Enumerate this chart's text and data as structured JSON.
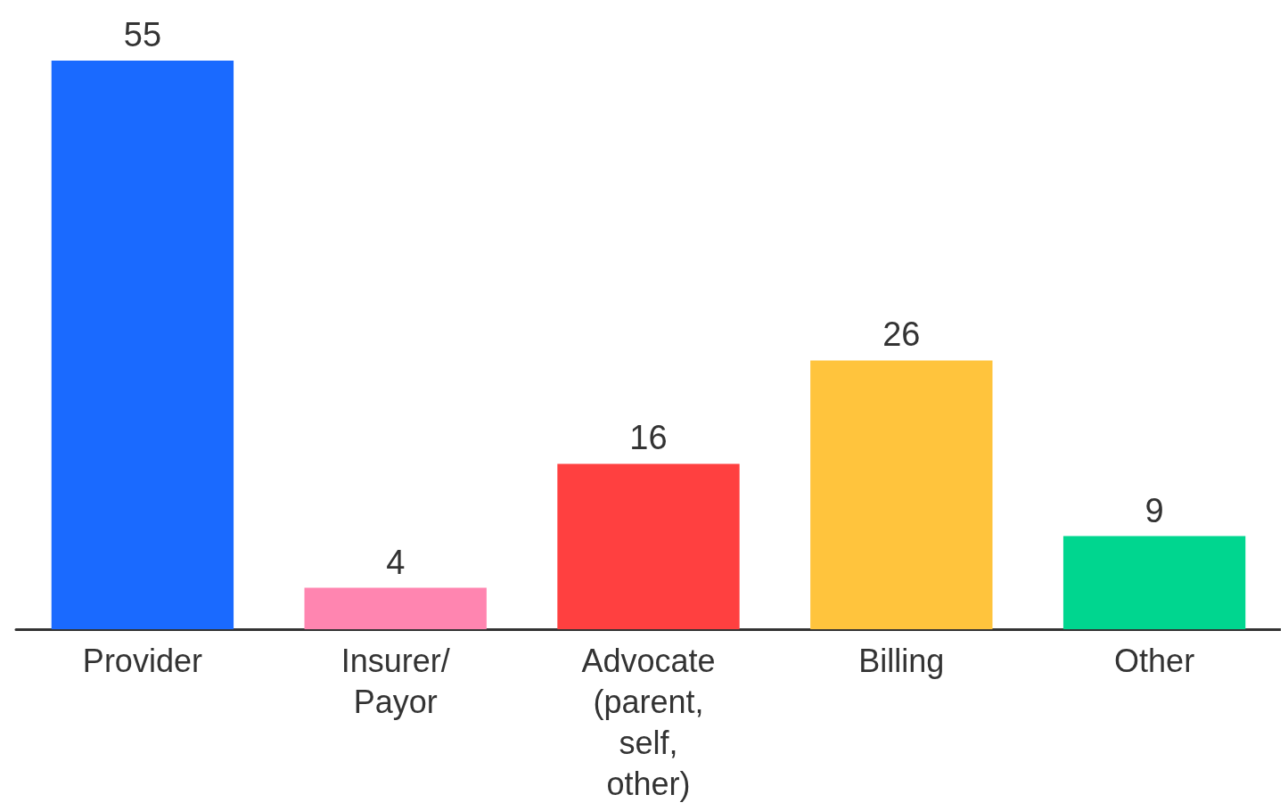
{
  "chart_data": {
    "type": "bar",
    "categories": [
      "Provider",
      "Insurer/\nPayor",
      "Advocate\n(parent,\nself,\nother)",
      "Billing",
      "Other"
    ],
    "values": [
      55,
      4,
      16,
      26,
      9
    ],
    "colors": [
      "#1a6aff",
      "#ff85b0",
      "#ff4040",
      "#ffc43d",
      "#00d68f"
    ],
    "data_labels": true
  }
}
